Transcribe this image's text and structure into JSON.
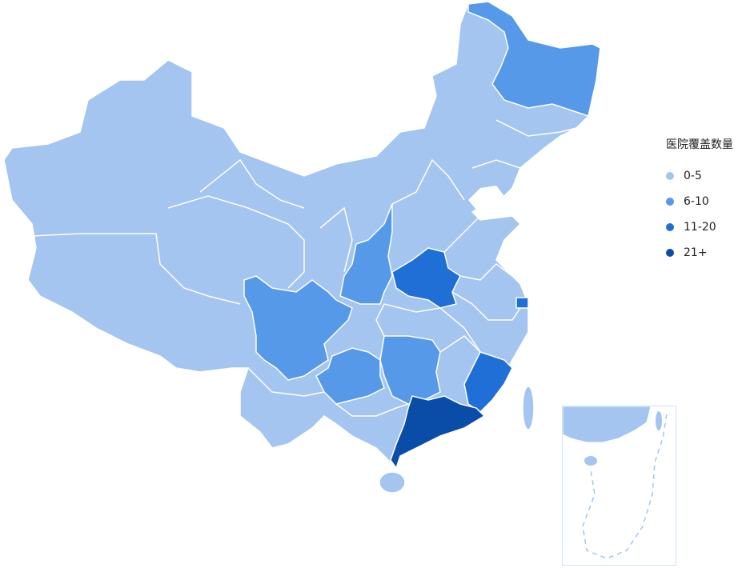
{
  "legend": {
    "title": "医院覆盖数量",
    "items": [
      {
        "label": "0-5",
        "color": "#A3C5F0"
      },
      {
        "label": "6-10",
        "color": "#5599E8"
      },
      {
        "label": "11-20",
        "color": "#1F6FD6"
      },
      {
        "label": "21+",
        "color": "#0A4DA8"
      }
    ]
  },
  "regions": {
    "heilongjiang": 1,
    "shaanxi": 1,
    "sichuan": 1,
    "guizhou": 1,
    "hunan": 1,
    "henan": 2,
    "fujian": 2,
    "shanghai": 2,
    "guangdong": 3
  },
  "base_level": 0,
  "border_color": "#ffffff"
}
